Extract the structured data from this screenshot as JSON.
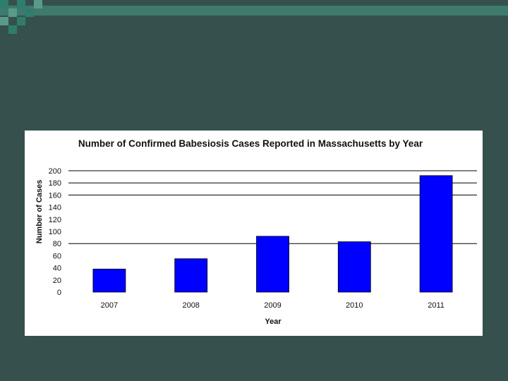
{
  "chart_data": {
    "type": "bar",
    "title": "Number of Confirmed Babesiosis Cases Reported in Massachusetts by Year",
    "xlabel": "Year",
    "ylabel": "Number of Cases",
    "categories": [
      "2007",
      "2008",
      "2009",
      "2010",
      "2011"
    ],
    "values": [
      38,
      55,
      92,
      83,
      192
    ],
    "ylim": [
      0,
      200
    ],
    "yticks": [
      "0",
      "20",
      "40",
      "60",
      "80",
      "100",
      "120",
      "140",
      "160",
      "180",
      "200"
    ],
    "gridlines": [
      80,
      160,
      180,
      200
    ],
    "bar_color": "#0000ff",
    "legend": "none"
  },
  "colors": {
    "background": "#36504d",
    "accent": "#3e7a6e",
    "panel": "#ffffff"
  }
}
